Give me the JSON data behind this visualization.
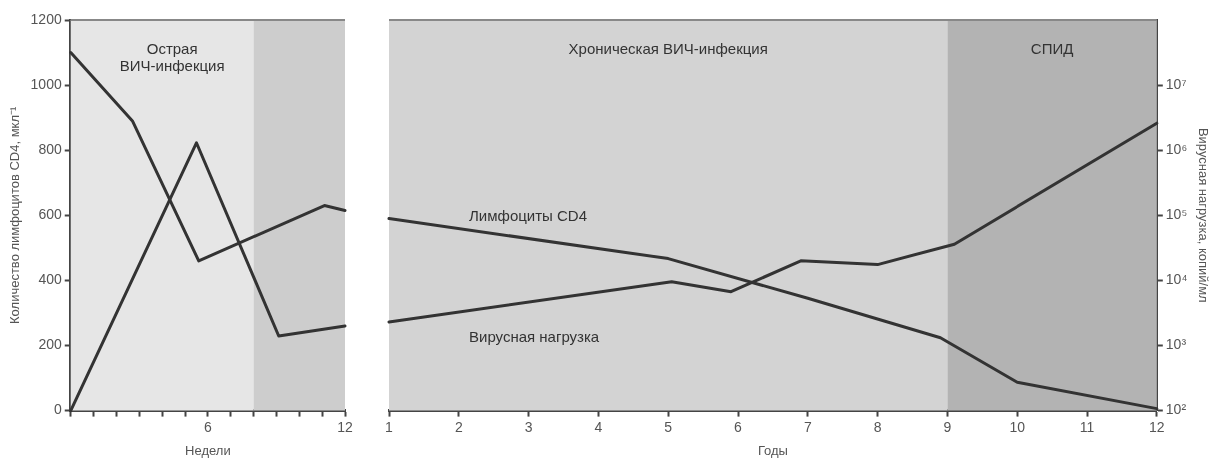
{
  "chart_data": [
    {
      "type": "line",
      "xlabel": "Недели",
      "ylabel": "Количество лимфоцитов CD4, мкл⁻¹",
      "xlim": [
        0,
        12
      ],
      "xticks": [
        {
          "value": 0,
          "label": null
        },
        {
          "value": 1,
          "label": null
        },
        {
          "value": 2,
          "label": null
        },
        {
          "value": 3,
          "label": null
        },
        {
          "value": 4,
          "label": null
        },
        {
          "value": 5,
          "label": null
        },
        6,
        {
          "value": 7,
          "label": null
        },
        {
          "value": 8,
          "label": null
        },
        {
          "value": 9,
          "label": null
        },
        {
          "value": 10,
          "label": null
        },
        {
          "value": 11,
          "label": null
        },
        12
      ],
      "ylim": [
        0,
        1200
      ],
      "yticks": [
        0,
        200,
        400,
        600,
        800,
        1000,
        1200
      ],
      "y2lim": [
        100,
        100000000
      ],
      "log": "y2",
      "series": [
        {
          "color": "#333333",
          "x": [
            0,
            2.7,
            5.6,
            11.1,
            12
          ],
          "values": [
            1100,
            890,
            460,
            630,
            615
          ]
        },
        {
          "color": "#333333",
          "axis": "y2",
          "x": [
            0,
            5.5,
            9.1,
            12
          ],
          "values": [
            100,
            1300000,
            1400,
            2000
          ]
        }
      ],
      "bands": [
        {
          "axis": "x",
          "from": 0,
          "to": 8,
          "label": "Острая\nВИЧ-инфекция",
          "color": "#e6e6e6"
        },
        {
          "axis": "x",
          "from": 8,
          "to": 12,
          "label": null,
          "color": "#cdcdcd"
        }
      ],
      "marker": "none",
      "line_style": "solid",
      "grid": false,
      "legend": false
    },
    {
      "type": "line",
      "xlabel": "Годы",
      "y2label": "Вирусная нагрузка, копий/мл",
      "xlim": [
        1,
        12
      ],
      "xticks": [
        1,
        2,
        3,
        4,
        5,
        6,
        7,
        8,
        9,
        10,
        11,
        12
      ],
      "ylim": [
        0,
        1200
      ],
      "y2lim": [
        100,
        100000000
      ],
      "log": "y2",
      "y2ticks": [
        {
          "value": 100,
          "label": "10²"
        },
        {
          "value": 1000,
          "label": "10³"
        },
        {
          "value": 10000,
          "label": "10⁴"
        },
        {
          "value": 100000,
          "label": "10⁵"
        },
        {
          "value": 1000000,
          "label": "10⁶"
        },
        {
          "value": 10000000,
          "label": "10⁷"
        }
      ],
      "series": [
        {
          "name": "Лимфоциты CD4",
          "color": "#333333",
          "x": [
            1,
            5,
            7,
            8.9,
            10,
            12
          ],
          "values": [
            590,
            467,
            345,
            224,
            87,
            6
          ]
        },
        {
          "name": "Вирусная нагрузка",
          "color": "#333333",
          "axis": "y2",
          "x": [
            1,
            5.05,
            5.9,
            6.9,
            8,
            9.1,
            12
          ],
          "values": [
            2300,
            9500,
            6700,
            20000,
            17500,
            36000,
            2600000
          ]
        }
      ],
      "bands": [
        {
          "axis": "x",
          "from": 1,
          "to": 9,
          "label": "Хроническая ВИЧ-инфекция",
          "color": "#d3d3d3"
        },
        {
          "axis": "x",
          "from": 9,
          "to": 12,
          "label": "СПИД",
          "color": "#b3b3b3"
        }
      ],
      "marker": "none",
      "line_style": "solid",
      "grid": false,
      "legend": false
    }
  ]
}
